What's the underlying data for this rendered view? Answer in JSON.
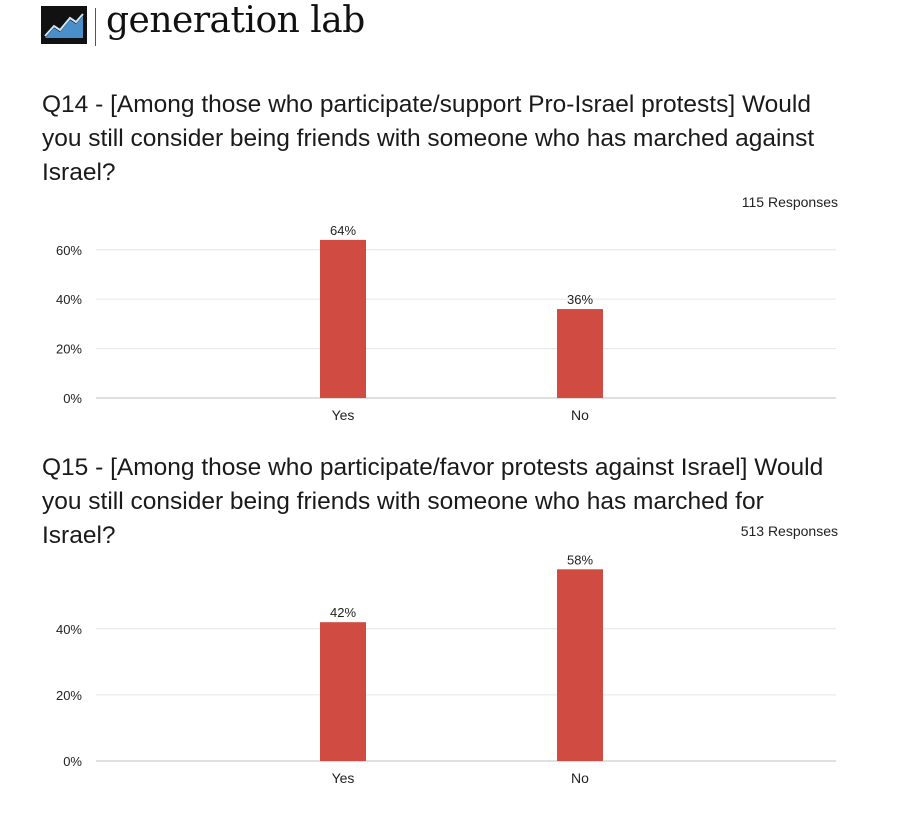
{
  "header": {
    "brand": "generation lab",
    "logo_icon": "mountain-chart-icon"
  },
  "charts": [
    {
      "question": "Q14 - [Among those who participate/support Pro-Israel protests] Would you still consider being friends with someone who has marched against Israel?",
      "responses": "115 Responses"
    },
    {
      "question": "Q15 - [Among those who participate/favor protests against Israel] Would you still consider being friends with someone who has marched for Israel?",
      "responses": "513 Responses"
    }
  ],
  "chart_data": [
    {
      "type": "bar",
      "categories": [
        "Yes",
        "No"
      ],
      "values": [
        64,
        36
      ],
      "value_labels": [
        "64%",
        "36%"
      ],
      "yticks": [
        0,
        20,
        40,
        60
      ],
      "ytick_labels": [
        "0%",
        "20%",
        "40%",
        "60%"
      ],
      "ylim": [
        0,
        68
      ],
      "grid": true,
      "bar_color": "#d04b41"
    },
    {
      "type": "bar",
      "categories": [
        "Yes",
        "No"
      ],
      "values": [
        42,
        58
      ],
      "value_labels": [
        "42%",
        "58%"
      ],
      "yticks": [
        0,
        20,
        40
      ],
      "ytick_labels": [
        "0%",
        "20%",
        "40%"
      ],
      "ylim": [
        0,
        59
      ],
      "grid": true,
      "bar_color": "#d04b41"
    }
  ]
}
